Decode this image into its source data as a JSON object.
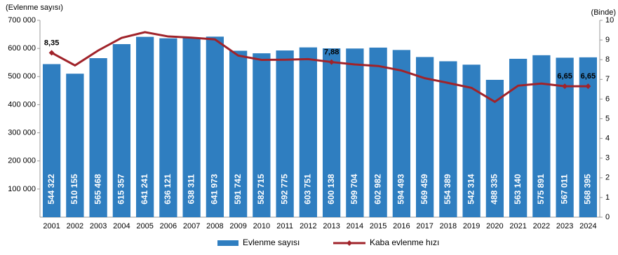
{
  "chart_data": {
    "type": "bar-line",
    "y_label": "(Evlenme sayısı)",
    "y2_label": "(Binde)",
    "categories": [
      "2001",
      "2002",
      "2003",
      "2004",
      "2005",
      "2006",
      "2007",
      "2008",
      "2009",
      "2010",
      "2011",
      "2012",
      "2013",
      "2014",
      "2015",
      "2016",
      "2017",
      "2018",
      "2019",
      "2020",
      "2021",
      "2022",
      "2023",
      "2024"
    ],
    "series": [
      {
        "name": "Evlenme sayısı",
        "color": "#2f7ec0",
        "type": "bar",
        "values": [
          544322,
          510155,
          565468,
          615357,
          641241,
          636121,
          638311,
          641973,
          591742,
          582715,
          592775,
          603751,
          600138,
          599704,
          602982,
          594493,
          569459,
          554389,
          542314,
          488335,
          563140,
          575891,
          567011,
          568395
        ],
        "value_labels": [
          "544 322",
          "510 155",
          "565 468",
          "615 357",
          "641 241",
          "636 121",
          "638 311",
          "641 973",
          "591 742",
          "582 715",
          "592 775",
          "603 751",
          "600 138",
          "599 704",
          "602 982",
          "594 493",
          "569 459",
          "554 389",
          "542 314",
          "488 335",
          "563 140",
          "575 891",
          "567 011",
          "568 395"
        ]
      },
      {
        "name": "Kaba evlenme hızı",
        "color": "#a0232a",
        "type": "line",
        "axis": "y2",
        "values": [
          8.35,
          7.71,
          8.47,
          9.11,
          9.4,
          9.18,
          9.12,
          9.03,
          8.21,
          7.99,
          8.0,
          8.03,
          7.88,
          7.76,
          7.68,
          7.45,
          7.06,
          6.82,
          6.57,
          5.86,
          6.68,
          6.79,
          6.65,
          6.65
        ],
        "value_labels": [
          "8,35",
          null,
          null,
          null,
          null,
          null,
          null,
          null,
          null,
          null,
          null,
          null,
          "7,88",
          null,
          null,
          null,
          null,
          null,
          null,
          null,
          null,
          null,
          "6,65",
          "6,65"
        ]
      }
    ],
    "ylim": [
      0,
      700000
    ],
    "yticks": [
      {
        "value": 100000,
        "label": "100 000"
      },
      {
        "value": 200000,
        "label": "200 000"
      },
      {
        "value": 300000,
        "label": "300 000"
      },
      {
        "value": 400000,
        "label": "400 000"
      },
      {
        "value": 500000,
        "label": "500 000"
      },
      {
        "value": 600000,
        "label": "600 000"
      },
      {
        "value": 700000,
        "label": "700 000"
      }
    ],
    "y2lim": [
      0,
      10
    ],
    "y2ticks": [
      0,
      1,
      2,
      3,
      4,
      5,
      6,
      7,
      8,
      9,
      10
    ]
  }
}
